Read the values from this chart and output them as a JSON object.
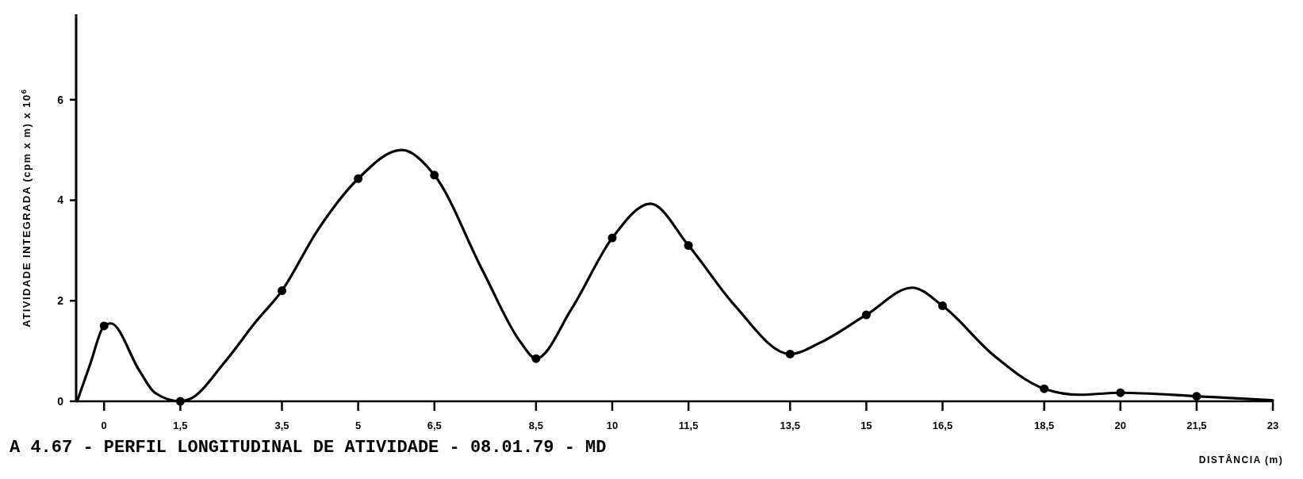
{
  "chart_data": {
    "type": "line",
    "title": "A 4.67 - PERFIL LONGITUDINAL DE ATIVIDADE - 08.01.79 - MD",
    "xlabel": "DISTÂNCIA  (m)",
    "ylabel": "ATIVIDADE   INTEGRADA   (cpm x m) x 10$^{6}$",
    "xlim": [
      -0.55,
      23
    ],
    "ylim": [
      0,
      7.7
    ],
    "xticks": [
      0,
      {
        "value": 1.5,
        "label": "1,5"
      },
      {
        "value": 3.5,
        "label": "3,5"
      },
      5,
      {
        "value": 6.5,
        "label": "6,5"
      },
      {
        "value": 8.5,
        "label": "8,5"
      },
      10,
      {
        "value": 11.5,
        "label": "11,5"
      },
      {
        "value": 13.5,
        "label": "13,5"
      },
      15,
      {
        "value": 16.5,
        "label": "16,5"
      },
      {
        "value": 18.5,
        "label": "18,5"
      },
      20,
      {
        "value": 21.5,
        "label": "21,5"
      },
      23
    ],
    "yticks": [
      0,
      2,
      4,
      6
    ],
    "grid": false,
    "series": [
      {
        "color": "#000000",
        "marker": "none",
        "line_style": "solid",
        "x": [
          -0.53,
          -0.27,
          0,
          0.13,
          0.7,
          1.0,
          1.5,
          1.7,
          2.35,
          3.0,
          3.5,
          4.2,
          5,
          5.85,
          6.5,
          7.45,
          8.2,
          8.5,
          9.2,
          10,
          10.75,
          11.5,
          12.4,
          13.5,
          14.1,
          15,
          15.9,
          16.5,
          17.5,
          18.5,
          19.2,
          20,
          21.5,
          23
        ],
        "values": [
          0,
          0.75,
          1.5,
          1.55,
          0.6,
          0.17,
          0,
          0.05,
          0.75,
          1.6,
          2.2,
          3.4,
          4.43,
          5.0,
          4.5,
          2.6,
          1.17,
          0.85,
          1.84,
          3.25,
          3.93,
          3.1,
          1.92,
          0.94,
          1.17,
          1.72,
          2.26,
          1.9,
          0.92,
          0.25,
          0.13,
          0.17,
          0.1,
          0.02
        ]
      },
      {
        "type": "scatter",
        "color": "#000000",
        "marker": "circle",
        "x": [
          0,
          1.5,
          3.5,
          5,
          6.5,
          8.5,
          10,
          11.5,
          13.5,
          15,
          16.5,
          18.5,
          20,
          21.5
        ],
        "values": [
          1.5,
          0,
          2.2,
          4.43,
          4.5,
          0.85,
          3.25,
          3.1,
          0.94,
          1.72,
          1.9,
          0.25,
          0.17,
          0.1
        ]
      }
    ]
  }
}
